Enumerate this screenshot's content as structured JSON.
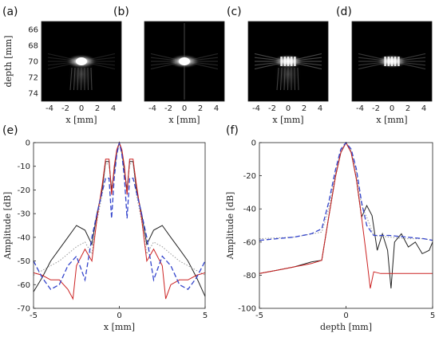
{
  "figure": {
    "panels": [
      "(a)",
      "(b)",
      "(c)",
      "(d)",
      "(e)",
      "(f)"
    ]
  },
  "chart_data": [
    {
      "type": "heatmap",
      "panel": "(a)",
      "xlabel": "x [mm]",
      "ylabel": "depth [mm]",
      "xticks": [
        -4,
        -2,
        0,
        2,
        4
      ],
      "yticks": [
        66,
        68,
        70,
        72,
        74
      ],
      "xlim": [
        -5,
        5
      ],
      "ylim": [
        65,
        75
      ]
    },
    {
      "type": "heatmap",
      "panel": "(b)",
      "xlabel": "x [mm]",
      "xticks": [
        -4,
        -2,
        0,
        2,
        4
      ],
      "xlim": [
        -5,
        5
      ],
      "ylim": [
        65,
        75
      ]
    },
    {
      "type": "heatmap",
      "panel": "(c)",
      "xlabel": "x [mm]",
      "xticks": [
        -4,
        -2,
        0,
        2,
        4
      ],
      "xlim": [
        -5,
        5
      ],
      "ylim": [
        65,
        75
      ]
    },
    {
      "type": "heatmap",
      "panel": "(d)",
      "xlabel": "x [mm]",
      "xticks": [
        -4,
        -2,
        0,
        2,
        4
      ],
      "xlim": [
        -5,
        5
      ],
      "ylim": [
        65,
        75
      ]
    },
    {
      "type": "line",
      "panel": "(e)",
      "xlabel": "x [mm]",
      "ylabel": "Amplitude [dB]",
      "xlim": [
        -5,
        5
      ],
      "ylim": [
        -70,
        0
      ],
      "xticks": [
        -5,
        0,
        5
      ],
      "yticks": [
        0,
        -10,
        -20,
        -30,
        -40,
        -50,
        -60,
        -70
      ],
      "grid": false,
      "series": [
        {
          "color": "#222222",
          "style": "solid",
          "x": [
            -5,
            -4.5,
            -4,
            -3.5,
            -3,
            -2.5,
            -2,
            -1.6,
            -1.3,
            -1.0,
            -0.8,
            -0.6,
            -0.45,
            -0.3,
            -0.15,
            0,
            0.15,
            0.3,
            0.45,
            0.6,
            0.8,
            1.0,
            1.3,
            1.6,
            2,
            2.5,
            3,
            3.5,
            4,
            4.5,
            5
          ],
          "y": [
            -63,
            -57,
            -50,
            -45,
            -40,
            -35,
            -37,
            -43,
            -30,
            -20,
            -8,
            -8,
            -20,
            -12,
            -4,
            0,
            -4,
            -12,
            -20,
            -8,
            -8,
            -20,
            -30,
            -43,
            -37,
            -35,
            -40,
            -45,
            -50,
            -57,
            -65
          ]
        },
        {
          "color": "#999999",
          "style": "dotted",
          "x": [
            -5,
            -4.5,
            -4,
            -3.5,
            -3,
            -2.5,
            -2,
            -1.6,
            -1.3,
            -1.0,
            -0.8,
            -0.6,
            -0.45,
            -0.3,
            -0.15,
            0,
            0.15,
            0.3,
            0.45,
            0.6,
            0.8,
            1.0,
            1.3,
            1.6,
            2,
            2.5,
            3,
            3.5,
            4,
            4.5,
            5
          ],
          "y": [
            -56,
            -54,
            -52,
            -50,
            -47,
            -44,
            -42,
            -47,
            -33,
            -22,
            -9,
            -9,
            -22,
            -13,
            -5,
            0,
            -5,
            -13,
            -22,
            -9,
            -9,
            -22,
            -33,
            -47,
            -42,
            -44,
            -47,
            -50,
            -52,
            -54,
            -56
          ]
        },
        {
          "color": "#cc2222",
          "style": "solid",
          "x": [
            -5,
            -4.5,
            -4,
            -3.5,
            -3,
            -2.7,
            -2.5,
            -2,
            -1.6,
            -1.3,
            -1.0,
            -0.8,
            -0.6,
            -0.45,
            -0.3,
            -0.15,
            0,
            0.15,
            0.3,
            0.45,
            0.6,
            0.8,
            1.0,
            1.3,
            1.6,
            2,
            2.5,
            2.7,
            3,
            3.5,
            4,
            4.5,
            5
          ],
          "y": [
            -55,
            -56,
            -58,
            -58,
            -62,
            -66,
            -52,
            -45,
            -50,
            -32,
            -18,
            -7,
            -7,
            -22,
            -10,
            -3,
            0,
            -3,
            -10,
            -22,
            -7,
            -7,
            -18,
            -32,
            -50,
            -45,
            -52,
            -66,
            -60,
            -58,
            -58,
            -56,
            -55
          ]
        },
        {
          "color": "#3344cc",
          "style": "dashed",
          "x": [
            -5,
            -4.5,
            -4,
            -3.5,
            -3,
            -2.5,
            -2,
            -1.6,
            -1.3,
            -1.0,
            -0.8,
            -0.6,
            -0.45,
            -0.3,
            -0.15,
            0,
            0.15,
            0.3,
            0.45,
            0.6,
            0.8,
            1.0,
            1.3,
            1.6,
            2,
            2.5,
            3,
            3.5,
            4,
            4.5,
            5
          ],
          "y": [
            -50,
            -57,
            -62,
            -60,
            -52,
            -48,
            -58,
            -40,
            -30,
            -21,
            -15,
            -15,
            -32,
            -15,
            -5,
            0,
            -5,
            -15,
            -32,
            -15,
            -15,
            -21,
            -30,
            -40,
            -58,
            -48,
            -52,
            -60,
            -62,
            -57,
            -50
          ]
        }
      ]
    },
    {
      "type": "line",
      "panel": "(f)",
      "xlabel": "depth [mm]",
      "ylabel": "Amplitude [dB]",
      "xlim": [
        -5,
        5
      ],
      "ylim": [
        -100,
        0
      ],
      "xticks": [
        -5,
        0,
        5
      ],
      "yticks": [
        0,
        -20,
        -40,
        -60,
        -80,
        -100
      ],
      "grid": false,
      "series": [
        {
          "color": "#222222",
          "style": "solid",
          "x": [
            -5,
            -4,
            -3,
            -2,
            -1.4,
            -1.0,
            -0.6,
            -0.3,
            0,
            0.3,
            0.6,
            0.9,
            1.2,
            1.5,
            1.8,
            2.1,
            2.4,
            2.6,
            2.8,
            3.2,
            3.6,
            4,
            4.4,
            4.8,
            5
          ],
          "y": [
            -79,
            -77,
            -75,
            -72,
            -71,
            -45,
            -20,
            -6,
            0,
            -6,
            -22,
            -45,
            -38,
            -44,
            -65,
            -55,
            -65,
            -88,
            -60,
            -55,
            -63,
            -60,
            -67,
            -65,
            -60
          ]
        },
        {
          "color": "#999999",
          "style": "dotted",
          "x": [
            -5,
            -3,
            -1.4,
            -1.0,
            -0.6,
            -0.3,
            0,
            0.3,
            0.6,
            0.9,
            1.2,
            1.6,
            2.5,
            3.5,
            4.5,
            5
          ],
          "y": [
            -58,
            -57,
            -54,
            -40,
            -18,
            -5,
            0,
            -5,
            -18,
            -38,
            -45,
            -56,
            -57,
            -58,
            -58,
            -59
          ]
        },
        {
          "color": "#cc2222",
          "style": "solid",
          "x": [
            -5,
            -4,
            -3,
            -2,
            -1.4,
            -1.0,
            -0.6,
            -0.3,
            0,
            0.3,
            0.6,
            0.9,
            1.2,
            1.4,
            1.6,
            2,
            3,
            4,
            5
          ],
          "y": [
            -79,
            -77,
            -75,
            -73,
            -71,
            -45,
            -20,
            -6,
            0,
            -6,
            -22,
            -45,
            -70,
            -88,
            -78,
            -79,
            -79,
            -79,
            -79
          ]
        },
        {
          "color": "#3344cc",
          "style": "dashed",
          "x": [
            -5,
            -4,
            -3,
            -2,
            -1.4,
            -1.0,
            -0.6,
            -0.3,
            0,
            0.3,
            0.6,
            0.9,
            1.2,
            1.6,
            2.5,
            3.5,
            4.5,
            5
          ],
          "y": [
            -59,
            -58,
            -57,
            -55,
            -52,
            -36,
            -16,
            -4,
            0,
            -4,
            -16,
            -36,
            -50,
            -56,
            -56,
            -57,
            -58,
            -59
          ]
        }
      ]
    }
  ]
}
